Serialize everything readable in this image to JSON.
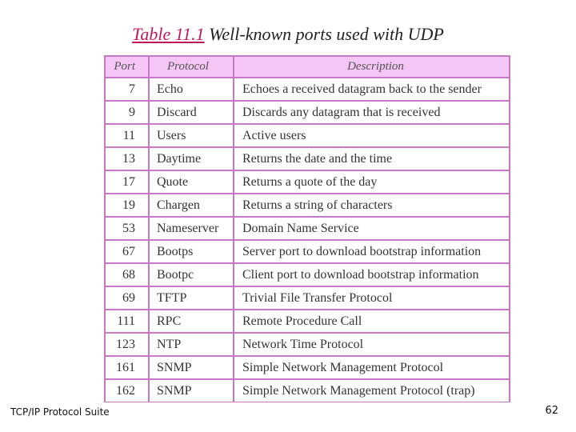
{
  "title": {
    "number": "Table 11.1",
    "text": "Well-known ports used with UDP"
  },
  "table": {
    "headers": [
      "Port",
      "Protocol",
      "Description"
    ],
    "rows": [
      [
        "7",
        "Echo",
        "Echoes a received datagram back to the sender"
      ],
      [
        "9",
        "Discard",
        "Discards any datagram that is received"
      ],
      [
        "11",
        "Users",
        "Active users"
      ],
      [
        "13",
        "Daytime",
        "Returns the date and the time"
      ],
      [
        "17",
        "Quote",
        "Returns a quote of the day"
      ],
      [
        "19",
        "Chargen",
        "Returns a string of characters"
      ],
      [
        "53",
        "Nameserver",
        "Domain Name Service"
      ],
      [
        "67",
        "Bootps",
        "Server port to download bootstrap information"
      ],
      [
        "68",
        "Bootpc",
        "Client port to download bootstrap information"
      ],
      [
        "69",
        "TFTP",
        "Trivial File Transfer Protocol"
      ],
      [
        "111",
        "RPC",
        "Remote Procedure Call"
      ],
      [
        "123",
        "NTP",
        "Network Time Protocol"
      ],
      [
        "161",
        "SNMP",
        "Simple Network Management Protocol"
      ],
      [
        "162",
        "SNMP",
        "Simple Network Management Protocol (trap)"
      ]
    ]
  },
  "footer": {
    "left": "TCP/IP Protocol Suite",
    "page_number": "62"
  },
  "colors": {
    "border": "#c678c6",
    "header_bg": "#f5c6f5",
    "title_number": "#c2185b"
  }
}
